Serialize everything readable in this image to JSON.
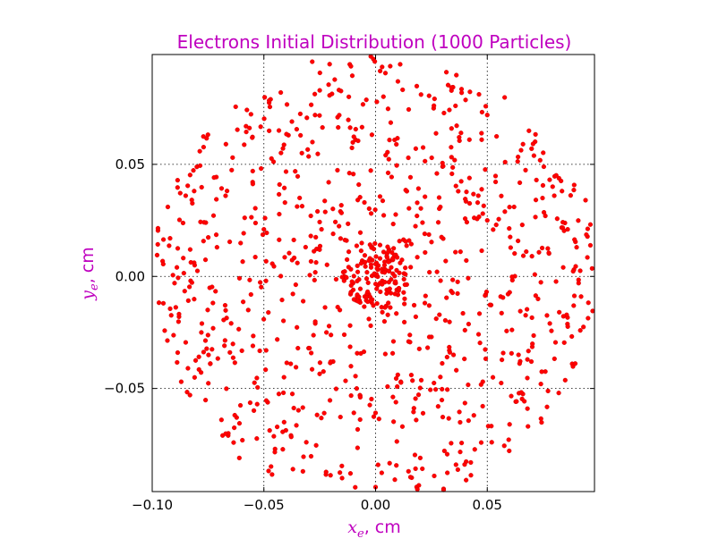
{
  "chart_data": {
    "type": "scatter",
    "title": "Electrons Initial Distribution (1000 Particles)",
    "xlabel": {
      "symbol": "x",
      "sub": "e",
      "unit": ", cm"
    },
    "ylabel": {
      "symbol": "y",
      "sub": "e",
      "unit": ", cm"
    },
    "xlim": [
      -0.1,
      0.098
    ],
    "ylim": [
      -0.096,
      0.099
    ],
    "xticks": [
      -0.1,
      -0.05,
      0.0,
      0.05
    ],
    "xtick_labels": [
      "−0.10",
      "−0.05",
      "0.00",
      "0.05"
    ],
    "yticks": [
      -0.05,
      0.0,
      0.05
    ],
    "ytick_labels": [
      "−0.05",
      "0.00",
      "0.05"
    ],
    "grid": true,
    "colors": {
      "points": "#ff0000",
      "labels": "#bf00bf"
    },
    "n_particles": 1000,
    "series": [
      {
        "marker": "o",
        "points": [
          [
            -0.095,
            -0.012
          ],
          [
            -0.093,
            0.031
          ],
          [
            -0.092,
            0.017
          ],
          [
            -0.09,
            -0.003
          ],
          [
            -0.088,
            -0.018
          ],
          [
            -0.087,
            -0.047
          ],
          [
            -0.085,
            0.036
          ],
          [
            -0.084,
            -0.041
          ],
          [
            -0.083,
            0.012
          ],
          [
            -0.081,
            0.005
          ],
          [
            -0.078,
            -0.025
          ],
          [
            -0.076,
            0.024
          ],
          [
            -0.074,
            -0.039
          ],
          [
            -0.071,
            0.013
          ],
          [
            -0.069,
            -0.064
          ],
          [
            -0.067,
            0.059
          ],
          [
            -0.066,
            -0.071
          ],
          [
            -0.064,
            0.053
          ],
          [
            -0.061,
            -0.081
          ],
          [
            -0.058,
            0.067
          ],
          [
            -0.057,
            -0.015
          ],
          [
            -0.055,
            0.047
          ],
          [
            -0.053,
            -0.057
          ],
          [
            -0.05,
            0.021
          ],
          [
            -0.049,
            -0.033
          ],
          [
            -0.047,
            0.079
          ],
          [
            -0.045,
            -0.077
          ],
          [
            -0.043,
            0.041
          ],
          [
            -0.041,
            -0.045
          ],
          [
            -0.039,
            0.063
          ],
          [
            -0.037,
            -0.086
          ],
          [
            -0.035,
            0.006
          ],
          [
            -0.033,
            0.055
          ],
          [
            -0.031,
            -0.074
          ],
          [
            -0.029,
            0.027
          ],
          [
            -0.027,
            -0.021
          ],
          [
            -0.025,
            0.083
          ],
          [
            -0.023,
            -0.061
          ],
          [
            -0.021,
            0.042
          ],
          [
            -0.019,
            -0.038
          ],
          [
            -0.017,
            0.071
          ],
          [
            -0.015,
            -0.09
          ],
          [
            -0.013,
            0.016
          ],
          [
            -0.011,
            -0.007
          ],
          [
            -0.009,
            0.061
          ],
          [
            -0.007,
            -0.053
          ],
          [
            -0.005,
            0.033
          ],
          [
            -0.003,
            -0.019
          ],
          [
            -0.001,
            0.097
          ],
          [
            0.0,
            -0.094
          ],
          [
            0.001,
            0.003
          ],
          [
            0.002,
            0.008
          ],
          [
            0.003,
            -0.002
          ],
          [
            0.004,
            0.005
          ],
          [
            0.005,
            -0.006
          ],
          [
            0.006,
            0.012
          ],
          [
            0.008,
            -0.029
          ],
          [
            0.01,
            0.087
          ],
          [
            0.012,
            -0.067
          ],
          [
            0.014,
            0.038
          ],
          [
            0.016,
            -0.044
          ],
          [
            0.018,
            0.057
          ],
          [
            0.02,
            -0.081
          ],
          [
            0.022,
            0.019
          ],
          [
            0.024,
            -0.013
          ],
          [
            0.026,
            0.075
          ],
          [
            0.028,
            -0.058
          ],
          [
            0.03,
            0.049
          ],
          [
            0.032,
            -0.036
          ],
          [
            0.034,
            0.066
          ],
          [
            0.036,
            -0.084
          ],
          [
            0.038,
            0.011
          ],
          [
            0.04,
            -0.024
          ],
          [
            0.042,
            0.061
          ],
          [
            0.044,
            -0.062
          ],
          [
            0.046,
            0.036
          ],
          [
            0.048,
            -0.047
          ],
          [
            0.05,
            0.072
          ],
          [
            0.052,
            -0.074
          ],
          [
            0.054,
            0.023
          ],
          [
            0.056,
            -0.009
          ],
          [
            0.058,
            0.051
          ],
          [
            0.06,
            -0.066
          ],
          [
            0.062,
            0.031
          ],
          [
            0.064,
            -0.035
          ],
          [
            0.066,
            0.059
          ],
          [
            0.068,
            -0.059
          ],
          [
            0.07,
            0.009
          ],
          [
            0.072,
            0.043
          ],
          [
            0.074,
            -0.048
          ],
          [
            0.076,
            0.027
          ],
          [
            0.078,
            -0.021
          ],
          [
            0.08,
            0.036
          ],
          [
            0.082,
            -0.052
          ],
          [
            0.084,
            0.004
          ],
          [
            0.086,
            0.021
          ],
          [
            0.088,
            -0.039
          ],
          [
            0.09,
            0.013
          ],
          [
            0.092,
            -0.009
          ],
          [
            0.094,
            0.034
          ],
          [
            -0.002,
            0.004
          ],
          [
            0.001,
            -0.004
          ],
          [
            0.003,
            0.002
          ],
          [
            -0.004,
            -0.001
          ],
          [
            0.007,
            0.004
          ],
          [
            -0.006,
            0.007
          ],
          [
            0.005,
            0.009
          ],
          [
            -0.003,
            -0.008
          ],
          [
            0.009,
            -0.003
          ],
          [
            -0.008,
            0.002
          ],
          [
            0.011,
            0.006
          ],
          [
            -0.01,
            -0.006
          ],
          [
            0.002,
            0.014
          ],
          [
            -0.001,
            -0.013
          ],
          [
            0.013,
            -0.01
          ],
          [
            -0.012,
            0.011
          ],
          [
            0.015,
            0.016
          ],
          [
            -0.016,
            -0.015
          ],
          [
            0.018,
            -0.018
          ],
          [
            -0.019,
            0.019
          ],
          [
            0.021,
            0.024
          ],
          [
            -0.022,
            -0.025
          ],
          [
            0.025,
            -0.027
          ],
          [
            -0.026,
            0.029
          ],
          [
            0.029,
            0.031
          ],
          [
            -0.03,
            -0.032
          ],
          [
            0.033,
            -0.033
          ],
          [
            -0.034,
            0.035
          ],
          [
            0.037,
            0.038
          ],
          [
            -0.038,
            -0.039
          ]
        ]
      }
    ]
  }
}
